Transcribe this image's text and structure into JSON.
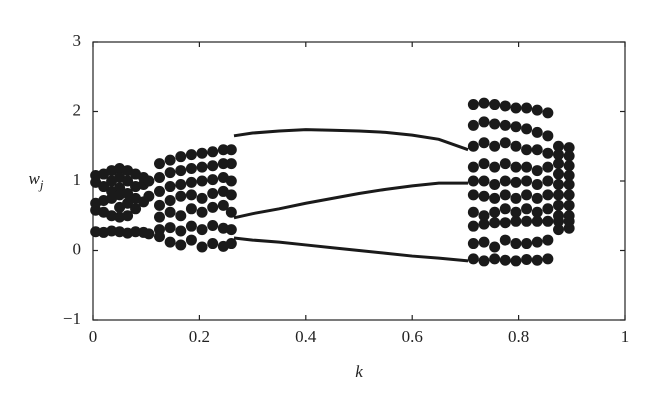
{
  "chart_data": {
    "type": "scatter",
    "xlabel": "k",
    "ylabel": "w",
    "ylabel_sub": "j",
    "xlim": [
      0,
      1
    ],
    "ylim": [
      -1,
      3
    ],
    "xticks": [
      0,
      0.2,
      0.4,
      0.6,
      0.8,
      1
    ],
    "yticks": [
      {
        "value": -1,
        "label": "−1"
      },
      0,
      1,
      2,
      3
    ],
    "grid": false,
    "series": [
      {
        "mode": "markers",
        "color": "#1a1a1a",
        "x": [
          0.005,
          0.005,
          0.005,
          0.005,
          0.02,
          0.02,
          0.02,
          0.02,
          0.035,
          0.035,
          0.035,
          0.035,
          0.035,
          0.05,
          0.05,
          0.05,
          0.05,
          0.05,
          0.05,
          0.065,
          0.065,
          0.065,
          0.065,
          0.065,
          0.08,
          0.08,
          0.08,
          0.08,
          0.095,
          0.095,
          0.095,
          0.105,
          0.105,
          0.005,
          0.02,
          0.035,
          0.05,
          0.065,
          0.08,
          0.095,
          0.105
        ],
        "values": [
          1.08,
          0.98,
          0.68,
          0.58,
          1.1,
          0.92,
          0.72,
          0.55,
          1.15,
          1.0,
          0.85,
          0.75,
          0.5,
          1.18,
          1.05,
          0.9,
          0.8,
          0.62,
          0.48,
          1.15,
          1.0,
          0.82,
          0.68,
          0.5,
          1.1,
          0.92,
          0.75,
          0.6,
          1.05,
          0.95,
          0.7,
          1.0,
          0.78,
          0.27,
          0.26,
          0.28,
          0.27,
          0.25,
          0.27,
          0.26,
          0.24
        ]
      },
      {
        "mode": "markers",
        "color": "#1a1a1a",
        "x": [
          0.125,
          0.125,
          0.125,
          0.125,
          0.125,
          0.125,
          0.125,
          0.145,
          0.145,
          0.145,
          0.145,
          0.145,
          0.145,
          0.145,
          0.165,
          0.165,
          0.165,
          0.165,
          0.165,
          0.165,
          0.165,
          0.185,
          0.185,
          0.185,
          0.185,
          0.185,
          0.185,
          0.185,
          0.205,
          0.205,
          0.205,
          0.205,
          0.205,
          0.205,
          0.205,
          0.225,
          0.225,
          0.225,
          0.225,
          0.225,
          0.225,
          0.225,
          0.245,
          0.245,
          0.245,
          0.245,
          0.245,
          0.245,
          0.245,
          0.26,
          0.26,
          0.26,
          0.26,
          0.26,
          0.26,
          0.26
        ],
        "values": [
          1.25,
          1.05,
          0.85,
          0.65,
          0.48,
          0.3,
          0.2,
          1.3,
          1.12,
          0.92,
          0.72,
          0.55,
          0.33,
          0.12,
          1.35,
          1.15,
          0.95,
          0.78,
          0.5,
          0.28,
          0.08,
          1.38,
          1.18,
          0.98,
          0.8,
          0.6,
          0.35,
          0.15,
          1.4,
          1.2,
          1.0,
          0.75,
          0.55,
          0.3,
          0.05,
          1.42,
          1.22,
          1.02,
          0.82,
          0.62,
          0.36,
          0.1,
          1.45,
          1.25,
          1.05,
          0.85,
          0.65,
          0.32,
          0.06,
          1.45,
          1.25,
          1.0,
          0.8,
          0.55,
          0.3,
          0.1
        ]
      },
      {
        "mode": "markers",
        "color": "#1a1a1a",
        "x": [
          0.715,
          0.715,
          0.715,
          0.715,
          0.715,
          0.715,
          0.715,
          0.715,
          0.715,
          0.715,
          0.735,
          0.735,
          0.735,
          0.735,
          0.735,
          0.735,
          0.735,
          0.735,
          0.735,
          0.735,
          0.755,
          0.755,
          0.755,
          0.755,
          0.755,
          0.755,
          0.755,
          0.755,
          0.755,
          0.755,
          0.775,
          0.775,
          0.775,
          0.775,
          0.775,
          0.775,
          0.775,
          0.775,
          0.775,
          0.775,
          0.795,
          0.795,
          0.795,
          0.795,
          0.795,
          0.795,
          0.795,
          0.795,
          0.795,
          0.795,
          0.815,
          0.815,
          0.815,
          0.815,
          0.815,
          0.815,
          0.815,
          0.815,
          0.815,
          0.815,
          0.835,
          0.835,
          0.835,
          0.835,
          0.835,
          0.835,
          0.835,
          0.835,
          0.835,
          0.835,
          0.855,
          0.855,
          0.855,
          0.855,
          0.855,
          0.855,
          0.855,
          0.855,
          0.855,
          0.855,
          0.875,
          0.875,
          0.875,
          0.875,
          0.875,
          0.875,
          0.875,
          0.875,
          0.875,
          0.875,
          0.895,
          0.895,
          0.895,
          0.895,
          0.895,
          0.895,
          0.895,
          0.895,
          0.895,
          0.895
        ],
        "values": [
          2.1,
          1.8,
          1.5,
          1.2,
          1.0,
          0.8,
          0.55,
          0.35,
          0.1,
          -0.12,
          2.12,
          1.85,
          1.55,
          1.25,
          1.0,
          0.78,
          0.5,
          0.38,
          0.12,
          -0.15,
          2.1,
          1.82,
          1.5,
          1.2,
          0.95,
          0.75,
          0.55,
          0.4,
          0.05,
          -0.12,
          2.08,
          1.8,
          1.55,
          1.25,
          1.0,
          0.8,
          0.6,
          0.4,
          0.15,
          -0.14,
          2.05,
          1.78,
          1.5,
          1.2,
          0.98,
          0.75,
          0.55,
          0.42,
          0.1,
          -0.15,
          2.05,
          1.75,
          1.45,
          1.2,
          1.0,
          0.8,
          0.6,
          0.42,
          0.1,
          -0.13,
          2.02,
          1.7,
          1.45,
          1.15,
          0.95,
          0.75,
          0.55,
          0.42,
          0.12,
          -0.14,
          1.98,
          1.65,
          1.4,
          1.2,
          1.0,
          0.8,
          0.6,
          0.42,
          0.15,
          -0.12,
          1.5,
          1.38,
          1.25,
          1.1,
          0.95,
          0.8,
          0.65,
          0.5,
          0.42,
          0.3,
          1.48,
          1.36,
          1.22,
          1.08,
          0.95,
          0.8,
          0.65,
          0.5,
          0.42,
          0.32
        ]
      },
      {
        "mode": "line",
        "color": "#1a1a1a",
        "x": [
          0.265,
          0.3,
          0.35,
          0.4,
          0.45,
          0.5,
          0.55,
          0.6,
          0.65,
          0.705
        ],
        "values": [
          1.65,
          1.69,
          1.72,
          1.74,
          1.73,
          1.72,
          1.7,
          1.66,
          1.6,
          1.45
        ]
      },
      {
        "mode": "line",
        "color": "#1a1a1a",
        "x": [
          0.265,
          0.3,
          0.35,
          0.4,
          0.45,
          0.5,
          0.55,
          0.6,
          0.65,
          0.705
        ],
        "values": [
          0.47,
          0.53,
          0.6,
          0.68,
          0.75,
          0.82,
          0.88,
          0.93,
          0.97,
          0.97
        ]
      },
      {
        "mode": "line",
        "color": "#1a1a1a",
        "x": [
          0.265,
          0.3,
          0.35,
          0.4,
          0.45,
          0.5,
          0.55,
          0.6,
          0.65,
          0.705
        ],
        "values": [
          0.18,
          0.15,
          0.12,
          0.08,
          0.04,
          0.0,
          -0.04,
          -0.08,
          -0.11,
          -0.15
        ]
      }
    ]
  }
}
